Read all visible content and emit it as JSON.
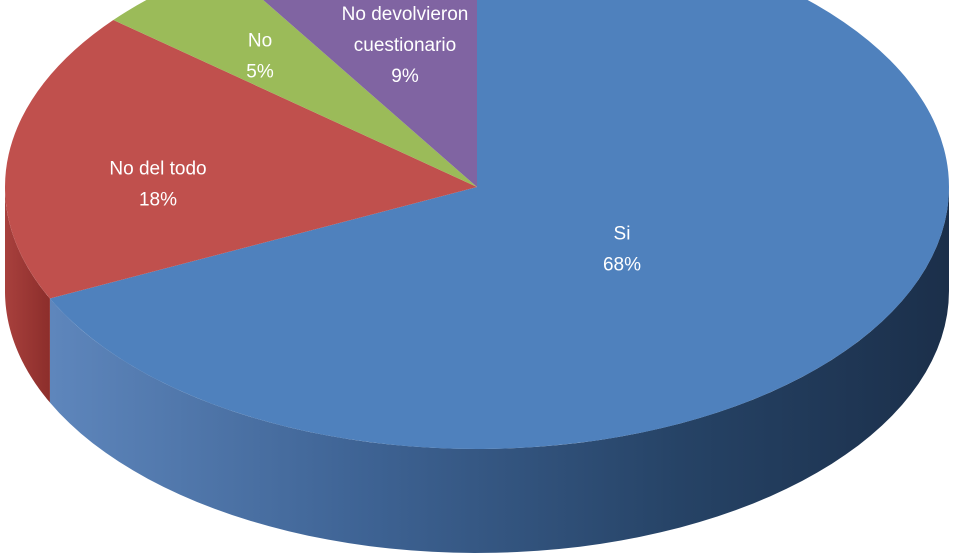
{
  "chart_data": {
    "type": "pie",
    "title": "",
    "slices": [
      {
        "label": "Si",
        "percent_label": "68%",
        "value": 68,
        "color": "#4F81BD",
        "side_color": "#2B4A70",
        "label_lines": [
          "Si",
          "68%"
        ]
      },
      {
        "label": "No del todo",
        "percent_label": "18%",
        "value": 18,
        "color": "#C0504D",
        "side_color": "#8C2E2B",
        "label_lines": [
          "No del todo",
          "18%"
        ]
      },
      {
        "label": "No",
        "percent_label": "5%",
        "value": 5,
        "color": "#9BBB59",
        "side_color": "#6E8A3A",
        "label_lines": [
          "No",
          "5%"
        ]
      },
      {
        "label": "No devolvieron cuestionario",
        "percent_label": "9%",
        "value": 9,
        "color": "#8064A2",
        "side_color": "#5A4578",
        "label_lines": [
          "No devolvieron",
          "cuestionario",
          "9%"
        ]
      }
    ]
  }
}
